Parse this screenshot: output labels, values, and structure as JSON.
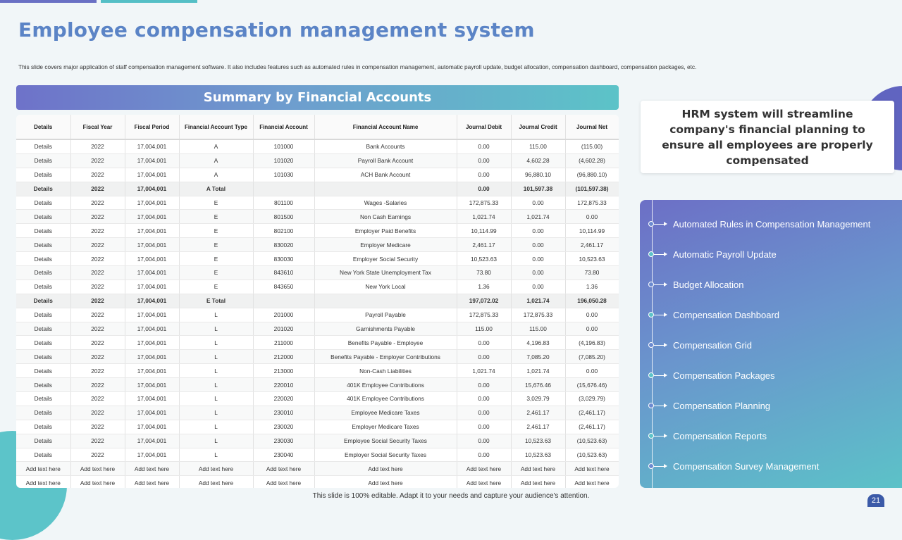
{
  "title": "Employee compensation management system",
  "subtitle": "This slide covers major application of staff compensation management software. It also includes features such as automated rules in compensation management, automatic payroll update, budget allocation, compensation dashboard, compensation packages, etc.",
  "banner": "Summary by Financial Accounts",
  "table": {
    "headers": [
      "Details",
      "Fiscal Year",
      "Fiscal Period",
      "Financial Account Type",
      "Financial Account",
      "Financial Account Name",
      "Journal Debit",
      "Journal Credit",
      "Journal Net"
    ],
    "rows": [
      {
        "total": false,
        "cells": [
          "Details",
          "2022",
          "17,004,001",
          "A",
          "101000",
          "Bank Accounts",
          "0.00",
          "115.00",
          "(115.00)"
        ]
      },
      {
        "total": false,
        "cells": [
          "Details",
          "2022",
          "17,004,001",
          "A",
          "101020",
          "Payroll Bank Account",
          "0.00",
          "4,602.28",
          "(4,602.28)"
        ]
      },
      {
        "total": false,
        "cells": [
          "Details",
          "2022",
          "17,004,001",
          "A",
          "101030",
          "ACH Bank Account",
          "0.00",
          "96,880.10",
          "(96,880.10)"
        ]
      },
      {
        "total": true,
        "cells": [
          "Details",
          "2022",
          "17,004,001",
          "A Total",
          "",
          "",
          "0.00",
          "101,597.38",
          "(101,597.38)"
        ]
      },
      {
        "total": false,
        "cells": [
          "Details",
          "2022",
          "17,004,001",
          "E",
          "801100",
          "Wages -Salaries",
          "172,875.33",
          "0.00",
          "172,875.33"
        ]
      },
      {
        "total": false,
        "cells": [
          "Details",
          "2022",
          "17,004,001",
          "E",
          "801500",
          "Non Cash Earnings",
          "1,021.74",
          "1,021.74",
          "0.00"
        ]
      },
      {
        "total": false,
        "cells": [
          "Details",
          "2022",
          "17,004,001",
          "E",
          "802100",
          "Employer Paid Benefits",
          "10,114.99",
          "0.00",
          "10,114.99"
        ]
      },
      {
        "total": false,
        "cells": [
          "Details",
          "2022",
          "17,004,001",
          "E",
          "830020",
          "Employer Medicare",
          "2,461.17",
          "0.00",
          "2,461.17"
        ]
      },
      {
        "total": false,
        "cells": [
          "Details",
          "2022",
          "17,004,001",
          "E",
          "830030",
          "Employer Social Security",
          "10,523.63",
          "0.00",
          "10,523.63"
        ]
      },
      {
        "total": false,
        "cells": [
          "Details",
          "2022",
          "17,004,001",
          "E",
          "843610",
          "New York State Unemployment Tax",
          "73.80",
          "0.00",
          "73.80"
        ]
      },
      {
        "total": false,
        "cells": [
          "Details",
          "2022",
          "17,004,001",
          "E",
          "843650",
          "New York Local",
          "1.36",
          "0.00",
          "1.36"
        ]
      },
      {
        "total": true,
        "cells": [
          "Details",
          "2022",
          "17,004,001",
          "E Total",
          "",
          "",
          "197,072.02",
          "1,021.74",
          "196,050.28"
        ]
      },
      {
        "total": false,
        "cells": [
          "Details",
          "2022",
          "17,004,001",
          "L",
          "201000",
          "Payroll Payable",
          "172,875.33",
          "172,875.33",
          "0.00"
        ]
      },
      {
        "total": false,
        "cells": [
          "Details",
          "2022",
          "17,004,001",
          "L",
          "201020",
          "Garnishments Payable",
          "115.00",
          "115.00",
          "0.00"
        ]
      },
      {
        "total": false,
        "cells": [
          "Details",
          "2022",
          "17,004,001",
          "L",
          "211000",
          "Benefits Payable - Employee",
          "0.00",
          "4,196.83",
          "(4,196.83)"
        ]
      },
      {
        "total": false,
        "cells": [
          "Details",
          "2022",
          "17,004,001",
          "L",
          "212000",
          "Benefits Payable - Employer Contributions",
          "0.00",
          "7,085.20",
          "(7,085.20)"
        ]
      },
      {
        "total": false,
        "cells": [
          "Details",
          "2022",
          "17,004,001",
          "L",
          "213000",
          "Non-Cash Liabilities",
          "1,021.74",
          "1,021.74",
          "0.00"
        ]
      },
      {
        "total": false,
        "cells": [
          "Details",
          "2022",
          "17,004,001",
          "L",
          "220010",
          "401K Employee Contributions",
          "0.00",
          "15,676.46",
          "(15,676.46)"
        ]
      },
      {
        "total": false,
        "cells": [
          "Details",
          "2022",
          "17,004,001",
          "L",
          "220020",
          "401K Employee Contributions",
          "0.00",
          "3,029.79",
          "(3,029.79)"
        ]
      },
      {
        "total": false,
        "cells": [
          "Details",
          "2022",
          "17,004,001",
          "L",
          "230010",
          "Employee Medicare Taxes",
          "0.00",
          "2,461.17",
          "(2,461.17)"
        ]
      },
      {
        "total": false,
        "cells": [
          "Details",
          "2022",
          "17,004,001",
          "L",
          "230020",
          "Employer Medicare Taxes",
          "0.00",
          "2,461.17",
          "(2,461.17)"
        ]
      },
      {
        "total": false,
        "cells": [
          "Details",
          "2022",
          "17,004,001",
          "L",
          "230030",
          "Employee Social Security Taxes",
          "0.00",
          "10,523.63",
          "(10,523.63)"
        ]
      },
      {
        "total": false,
        "cells": [
          "Details",
          "2022",
          "17,004,001",
          "L",
          "230040",
          "Employer Social Security Taxes",
          "0.00",
          "10,523.63",
          "(10,523.63)"
        ]
      },
      {
        "total": false,
        "cells": [
          "Add text here",
          "Add text here",
          "Add text here",
          "Add text here",
          "Add text here",
          "Add text here",
          "Add text here",
          "Add text here",
          "Add text here"
        ]
      },
      {
        "total": false,
        "cells": [
          "Add text here",
          "Add text here",
          "Add text here",
          "Add text here",
          "Add text here",
          "Add text here",
          "Add text here",
          "Add text here",
          "Add text here"
        ]
      }
    ]
  },
  "callout": "HRM system will streamline company's financial planning to ensure all employees are properly compensated",
  "features": [
    "Automated Rules in Compensation Management",
    "Automatic Payroll Update",
    "Budget Allocation",
    "Compensation Dashboard",
    "Compensation Grid",
    "Compensation Packages",
    "Compensation Planning",
    "Compensation Reports",
    "Compensation Survey Management"
  ],
  "footer": "This slide is 100% editable. Adapt it to your needs and capture your audience's attention.",
  "page_number": "21",
  "colors": {
    "title": "#5b84c6",
    "accent_purple": "#6a70c4",
    "accent_teal": "#55bfc6"
  }
}
